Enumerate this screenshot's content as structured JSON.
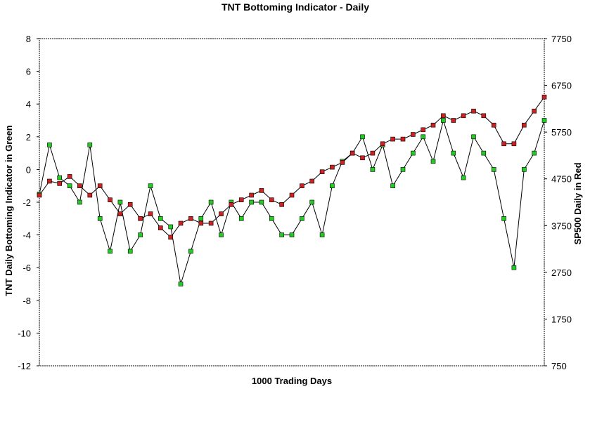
{
  "chart_data": {
    "type": "line",
    "title": "TNT Bottoming Indicator - Daily",
    "xlabel": "1000 Trading Days",
    "ylabel_left": "TNT Daily Bottoming Indicator in Green",
    "ylabel_right": "SP500 Daily in Red",
    "ylim_left": [
      -12,
      8
    ],
    "ylim_right": [
      750,
      7750
    ],
    "yticks_left": [
      "8",
      "6",
      "4",
      "2",
      "0",
      "-2",
      "-4",
      "-6",
      "-8",
      "-10",
      "-12"
    ],
    "yticks_right": [
      "7750",
      "6750",
      "5750",
      "4750",
      "3750",
      "2750",
      "1750",
      "750"
    ],
    "xlim": [
      0,
      1000
    ],
    "grid": false,
    "legend": "none",
    "series": [
      {
        "axis": "left",
        "color": "#22cc22",
        "marker": "square",
        "x": [
          0,
          20,
          40,
          60,
          80,
          100,
          120,
          140,
          160,
          180,
          200,
          220,
          240,
          260,
          280,
          300,
          320,
          340,
          360,
          380,
          400,
          420,
          440,
          460,
          480,
          500,
          520,
          540,
          560,
          580,
          600,
          620,
          640,
          660,
          680,
          700,
          720,
          740,
          760,
          780,
          800,
          820,
          840,
          860,
          880,
          900,
          920,
          940,
          960,
          980,
          1000
        ],
        "values": [
          -1.5,
          1.5,
          -0.5,
          -1,
          -2,
          1.5,
          -3,
          -5,
          -2,
          -5,
          -4,
          -1,
          -3,
          -3.5,
          -7,
          -5,
          -3,
          -2,
          -4,
          -2,
          -3,
          -2,
          -2,
          -3,
          -4,
          -4,
          -3,
          -2,
          -4,
          -1,
          0.5,
          1,
          2,
          0,
          1.5,
          -1,
          0,
          1,
          2,
          0.5,
          3,
          1,
          -0.5,
          2,
          1,
          0,
          -3,
          -6,
          0,
          1,
          3
        ]
      },
      {
        "axis": "right",
        "color": "#cc2222",
        "marker": "square",
        "x": [
          0,
          20,
          40,
          60,
          80,
          100,
          120,
          140,
          160,
          180,
          200,
          220,
          240,
          260,
          280,
          300,
          320,
          340,
          360,
          380,
          400,
          420,
          440,
          460,
          480,
          500,
          520,
          540,
          560,
          580,
          600,
          620,
          640,
          660,
          680,
          700,
          720,
          740,
          760,
          780,
          800,
          820,
          840,
          860,
          880,
          900,
          920,
          940,
          960,
          980,
          1000
        ],
        "values": [
          4400,
          4700,
          4650,
          4800,
          4600,
          4400,
          4600,
          4300,
          4000,
          4200,
          3900,
          4000,
          3700,
          3500,
          3800,
          3900,
          3800,
          3800,
          4000,
          4200,
          4300,
          4400,
          4500,
          4300,
          4200,
          4400,
          4600,
          4700,
          4900,
          5000,
          5100,
          5300,
          5200,
          5300,
          5500,
          5600,
          5600,
          5700,
          5800,
          5900,
          6100,
          6000,
          6100,
          6200,
          6100,
          5900,
          5500,
          5500,
          5900,
          6200,
          6500
        ]
      }
    ]
  }
}
